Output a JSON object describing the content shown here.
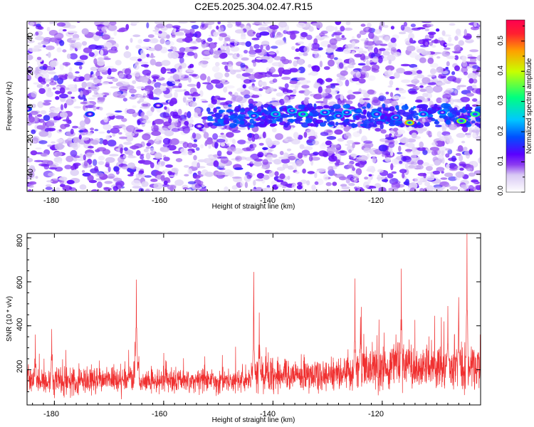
{
  "title": "C2E5.2025.304.02.47.R15",
  "colors": {
    "background": "#ffffff",
    "snr_line": "#f03030",
    "colormap": [
      "#ffffff",
      "#d8c8f4",
      "#8c3cf0",
      "#5a00ff",
      "#0050ff",
      "#00c8ff",
      "#00ff80",
      "#c8ff00",
      "#ffa000",
      "#ff2030",
      "#ff0050"
    ]
  },
  "chart_data": [
    {
      "type": "heatmap",
      "title": "C2E5.2025.304.02.47.R15",
      "xlabel": "Height of straight line (km)",
      "ylabel": "Frequency (Hz)",
      "xlim": [
        -185,
        -102
      ],
      "ylim": [
        -50,
        49
      ],
      "x_ticks": [
        "-180",
        "-160",
        "-140",
        "-120"
      ],
      "y_ticks": [
        "-40",
        "-20",
        "0",
        "20",
        "40"
      ],
      "colorbar": {
        "label": "Normalized spectral amplitude",
        "range": [
          0,
          0.57
        ],
        "ticks": [
          "0.0",
          "0.1",
          "0.2",
          "0.3",
          "0.4",
          "0.5"
        ]
      },
      "signal_band": {
        "frequency_center_hz": -6,
        "peak_amplitude": 0.46,
        "peak_height_km": -115,
        "hotspots": [
          {
            "x": -185,
            "y": -2,
            "v": 0.18
          },
          {
            "x": -173.5,
            "y": -5,
            "v": 0.18
          },
          {
            "x": -161,
            "y": 0,
            "v": 0.16
          },
          {
            "x": -153.5,
            "y": -12,
            "v": 0.14
          },
          {
            "x": -143.5,
            "y": -6,
            "v": 0.22
          },
          {
            "x": -139.5,
            "y": -5,
            "v": 0.26
          },
          {
            "x": -136.5,
            "y": -3,
            "v": 0.25
          },
          {
            "x": -134.5,
            "y": -5,
            "v": 0.31
          },
          {
            "x": -130.5,
            "y": -4,
            "v": 0.24
          },
          {
            "x": -128,
            "y": -6,
            "v": 0.22
          },
          {
            "x": -126.5,
            "y": -4,
            "v": 0.24
          },
          {
            "x": -121,
            "y": -5,
            "v": 0.22
          },
          {
            "x": -117.5,
            "y": -7,
            "v": 0.22
          },
          {
            "x": -115,
            "y": -10,
            "v": 0.46
          },
          {
            "x": -112.5,
            "y": -5,
            "v": 0.24
          },
          {
            "x": -109,
            "y": -4,
            "v": 0.22
          },
          {
            "x": -105.5,
            "y": -9,
            "v": 0.38
          },
          {
            "x": -103,
            "y": -5,
            "v": 0.34
          }
        ]
      }
    },
    {
      "type": "line",
      "xlabel": "Height of straight line (km)",
      "ylabel": "SNR (10 * v/v)",
      "xlim": [
        -185,
        -102
      ],
      "ylim": [
        40,
        820
      ],
      "x_ticks": [
        "-180",
        "-160",
        "-140",
        "-120"
      ],
      "y_ticks": [
        "200",
        "400",
        "600",
        "800"
      ],
      "series": [
        {
          "name": "SNR",
          "baseline_segments": [
            {
              "x_start": -185,
              "x_end": -165.5,
              "mean": 150,
              "spread": 90
            },
            {
              "x_start": -164.5,
              "x_end": -144,
              "mean": 150,
              "spread": 80
            },
            {
              "x_start": -144,
              "x_end": -125,
              "mean": 175,
              "spread": 110
            },
            {
              "x_start": -125,
              "x_end": -102,
              "mean": 210,
              "spread": 150
            }
          ],
          "peaks": [
            {
              "x": -183.5,
              "y": 360
            },
            {
              "x": -180.5,
              "y": 385
            },
            {
              "x": -165,
              "y": 610
            },
            {
              "x": -143.5,
              "y": 645
            },
            {
              "x": -142.5,
              "y": 460
            },
            {
              "x": -125,
              "y": 615
            },
            {
              "x": -124,
              "y": 440
            },
            {
              "x": -116.5,
              "y": 660
            },
            {
              "x": -108,
              "y": 490
            },
            {
              "x": -106,
              "y": 530
            },
            {
              "x": -104.5,
              "y": 820
            }
          ]
        }
      ]
    }
  ]
}
